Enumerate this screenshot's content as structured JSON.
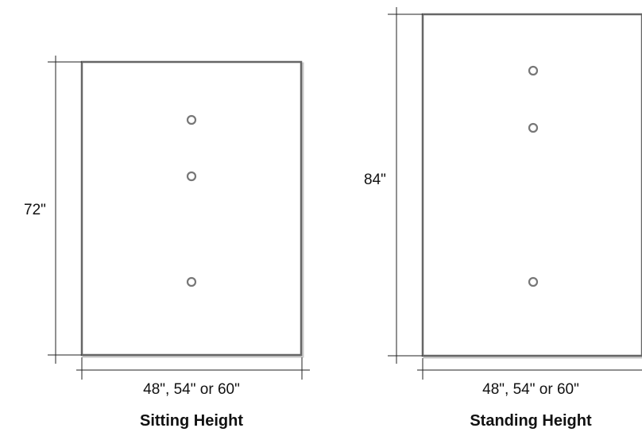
{
  "panels": [
    {
      "height_label": "72\"",
      "width_label": "48\", 54\" or 60\"",
      "caption": "Sitting Height",
      "hole_count": 3
    },
    {
      "height_label": "84\"",
      "width_label": "48\", 54\" or 60\"",
      "caption": "Standing Height",
      "hole_count": 3
    }
  ],
  "colors": {
    "panel_stroke": "#6a6a6a",
    "dimension_line": "#222222",
    "text": "#111111"
  }
}
